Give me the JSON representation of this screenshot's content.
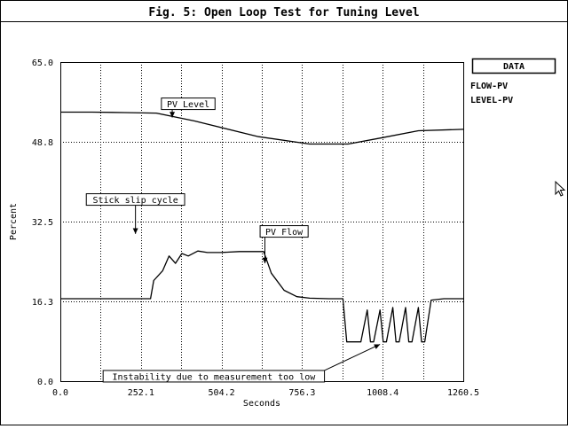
{
  "chart_data": {
    "type": "line",
    "title": "Fig. 5: Open Loop Test for Tuning Level",
    "xlabel": "Seconds",
    "ylabel": "Percent",
    "xlim": [
      0.0,
      1260.5
    ],
    "ylim": [
      0.0,
      65.0
    ],
    "x_ticks": [
      "0.0",
      "252.1",
      "504.2",
      "756.3",
      "1008.4",
      "1260.5"
    ],
    "y_ticks": [
      "0.0",
      "16.3",
      "32.5",
      "48.8",
      "65.0"
    ],
    "grid": true,
    "legend": {
      "title": "DATA",
      "placement": "top-right",
      "entries": [
        "FLOW-PV",
        "LEVEL-PV"
      ]
    },
    "series": [
      {
        "name": "LEVEL-PV",
        "x": [
          0,
          100,
          200,
          300,
          420,
          620,
          780,
          900,
          1000,
          1120,
          1260.5
        ],
        "y": [
          54.8,
          54.8,
          54.7,
          54.6,
          53.0,
          49.8,
          48.3,
          48.3,
          49.5,
          51.0,
          51.3
        ]
      },
      {
        "name": "FLOW-PV",
        "x": [
          0,
          200,
          282,
          292,
          320,
          340,
          360,
          380,
          400,
          430,
          460,
          500,
          560,
          620,
          636,
          660,
          700,
          740,
          780,
          840,
          884,
          896,
          940,
          960,
          970,
          980,
          1000,
          1010,
          1020,
          1040,
          1050,
          1060,
          1080,
          1090,
          1100,
          1120,
          1130,
          1140,
          1160,
          1200,
          1260.5
        ],
        "y": [
          16.8,
          16.8,
          16.8,
          20.5,
          22.5,
          25.5,
          24.0,
          26.0,
          25.5,
          26.5,
          26.2,
          26.2,
          26.4,
          26.4,
          26.4,
          22.0,
          18.5,
          17.2,
          16.9,
          16.8,
          16.8,
          8.0,
          8.0,
          14.5,
          8.0,
          8.0,
          14.5,
          8.0,
          8.0,
          15.0,
          8.0,
          8.0,
          15.0,
          8.0,
          8.0,
          15.0,
          8.0,
          8.0,
          16.5,
          16.8,
          16.8
        ]
      }
    ],
    "annotations": [
      {
        "text": "PV Level",
        "x": 400,
        "y": 56.5,
        "arrow_to": [
          350,
          53.7
        ]
      },
      {
        "text": "Stick slip cycle",
        "x": 235,
        "y": 37.0,
        "arrow_to": [
          235,
          30.0
        ]
      },
      {
        "text": "PV Flow",
        "x": 700,
        "y": 30.5,
        "arrow_to": [
          640,
          24.0
        ]
      },
      {
        "text": "Instability due to measurement too low",
        "x": 480,
        "y": 1.0,
        "arrow_to": [
          1000,
          7.5
        ]
      }
    ]
  }
}
